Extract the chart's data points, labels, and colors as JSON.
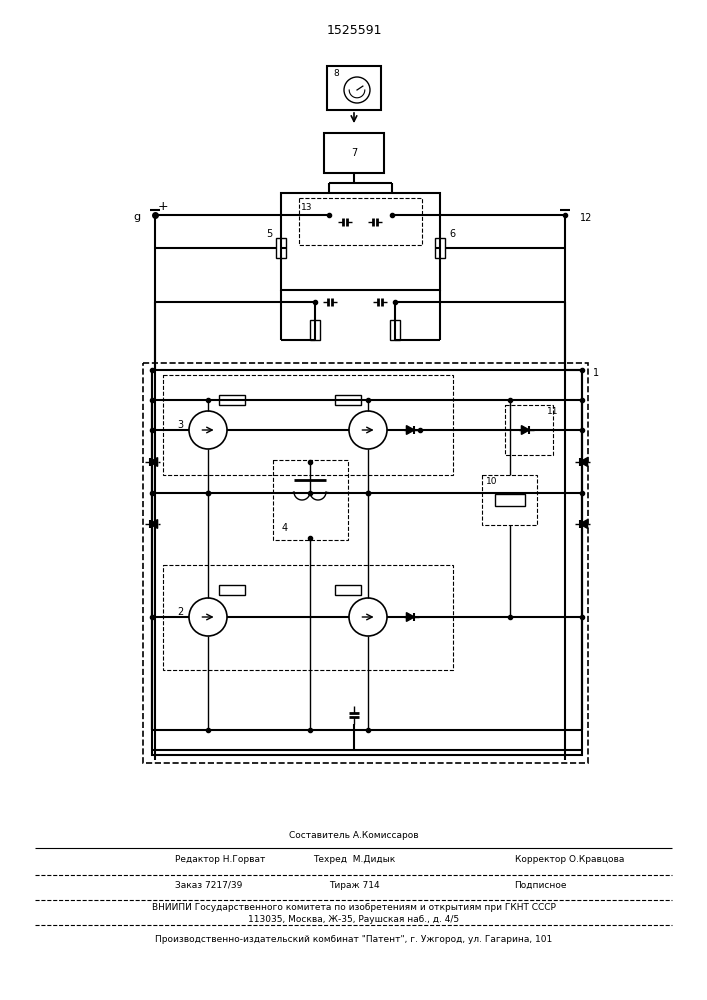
{
  "title": "1525591",
  "bg": "#ffffff",
  "lc": "#000000",
  "footer_composer": "Составитель А.Комиссаров",
  "footer_editor": "Редактор Н.Горват",
  "footer_tech": "Техред  М.Дидык",
  "footer_correct": "Корректор О.Кравцова",
  "footer_order": "Заказ 7217/39",
  "footer_copies": "Тираж 714",
  "footer_signed": "Подписное",
  "footer_vnipi": "ВНИИПИ Государственного комитета по изобретениям и открытиям при ГКНТ СССР",
  "footer_addr": "113035, Москва, Ж-35, Раушская наб., д. 4/5",
  "footer_plant": "Производственно-издательский комбинат \"Патент\", г. Ужгород, ул. Гагарина, 101"
}
